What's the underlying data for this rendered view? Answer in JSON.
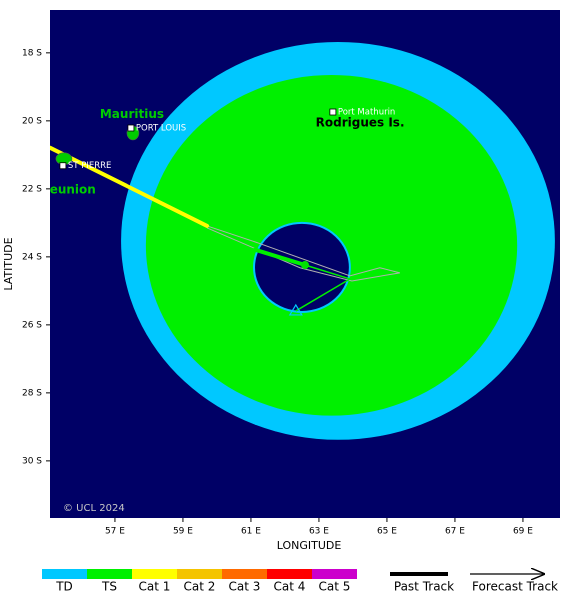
{
  "map": {
    "xlabel": "LONGITUDE",
    "ylabel": "LATITUDE",
    "background": "#000066",
    "xlim": [
      55.09,
      70.09
    ],
    "ylim": [
      -31.68,
      -16.74
    ],
    "xticks": [
      {
        "value": 57,
        "label": "57 E"
      },
      {
        "value": 59,
        "label": "59 E"
      },
      {
        "value": 61,
        "label": "61 E"
      },
      {
        "value": 63,
        "label": "63 E"
      },
      {
        "value": 65,
        "label": "65 E"
      },
      {
        "value": 67,
        "label": "67 E"
      },
      {
        "value": 69,
        "label": "69 E"
      }
    ],
    "yticks": [
      {
        "value": -18,
        "label": "18 S"
      },
      {
        "value": -20,
        "label": "20 S"
      },
      {
        "value": -22,
        "label": "22 S"
      },
      {
        "value": -24,
        "label": "24 S"
      },
      {
        "value": -26,
        "label": "26 S"
      },
      {
        "value": -28,
        "label": "28 S"
      },
      {
        "value": -30,
        "label": "30 S"
      }
    ],
    "copyright": "© UCL 2024",
    "towns": [
      {
        "name": "PORT LOUIS",
        "lon": 57.47,
        "lat": -20.21
      },
      {
        "name": "ST PIERRE",
        "lon": 55.47,
        "lat": -21.32
      },
      {
        "name": "Port Mathurin",
        "lon": 63.41,
        "lat": -19.74
      }
    ],
    "islands": [
      {
        "name": "Mauritius",
        "lon": 57.5,
        "lat": -19.82,
        "color": "#00cc00"
      },
      {
        "name": "Rodrigues Is.",
        "lon": 64.21,
        "lat": -20.06,
        "color": "#000000"
      },
      {
        "name": "eunion",
        "lon": 55.76,
        "lat": -22.03,
        "color": "#00cc00"
      }
    ],
    "storm": {
      "wind_fields": [
        {
          "lon": 63.56,
          "lat": -23.53,
          "rx": 6.38,
          "ry": 5.85,
          "color": "#00c8ff"
        },
        {
          "lon": 63.37,
          "lat": -23.66,
          "rx": 5.46,
          "ry": 5.01,
          "color": "#00f000"
        },
        {
          "lon": 62.5,
          "lat": -24.31,
          "rx": 1.41,
          "ry": 1.31,
          "color": "#000066"
        }
      ],
      "cone": {
        "color": "#b0b0b0",
        "lon": [
          59.71,
          61.21,
          63.91,
          64.79,
          65.38,
          63.97,
          62.44,
          59.71
        ],
        "lat": [
          -23.09,
          -23.59,
          -24.56,
          -24.32,
          -24.47,
          -24.71,
          -24.32,
          -23.15
        ]
      },
      "past_track": [
        {
          "color": "#ffff00",
          "lon": [
            55.09,
            59.71
          ],
          "lat": [
            -20.79,
            -23.09
          ]
        },
        {
          "color": "#00f000",
          "lon": [
            61.12,
            62.59
          ],
          "lat": [
            -23.79,
            -24.24
          ]
        }
      ],
      "forecast_track": {
        "color": "#00f000",
        "lon": [
          62.59,
          63.91,
          62.32
        ],
        "lat": [
          -24.24,
          -24.65,
          -25.59
        ]
      },
      "center": {
        "lon": 62.59,
        "lat": -24.24,
        "color": "#00e000"
      }
    }
  },
  "legend": {
    "categories": [
      {
        "label": "TD",
        "color": "#00c8ff"
      },
      {
        "label": "TS",
        "color": "#00f000"
      },
      {
        "label": "Cat 1",
        "color": "#ffff00"
      },
      {
        "label": "Cat 2",
        "color": "#f4c400"
      },
      {
        "label": "Cat 3",
        "color": "#ff6a00"
      },
      {
        "label": "Cat 4",
        "color": "#ff0000"
      },
      {
        "label": "Cat 5",
        "color": "#cc00cc"
      }
    ],
    "past_track": "Past Track",
    "forecast_track": "Forecast Track"
  }
}
